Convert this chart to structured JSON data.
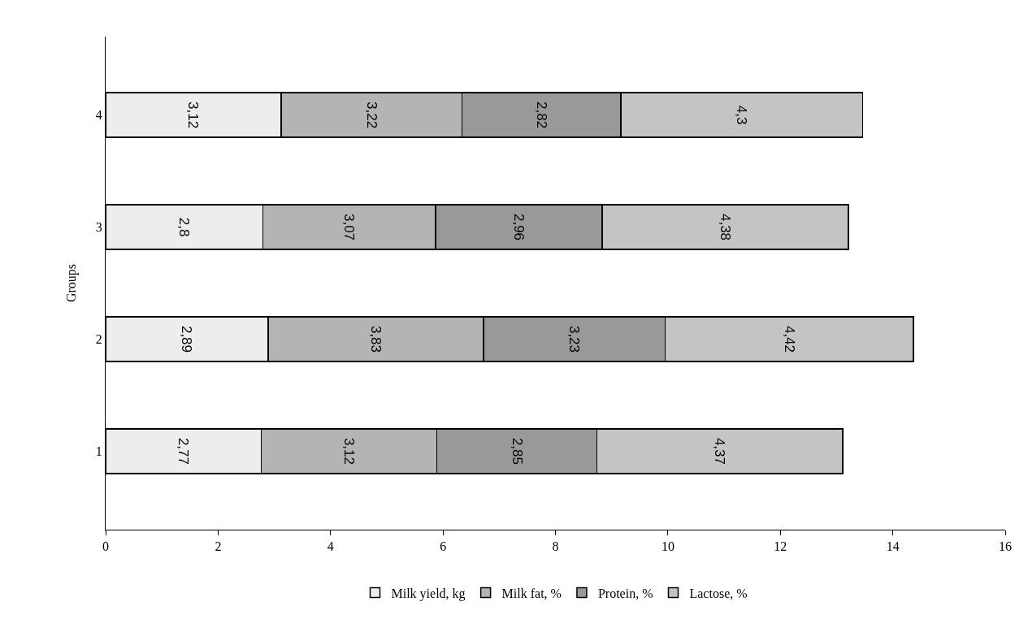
{
  "chart_data": {
    "type": "bar",
    "orientation": "horizontal",
    "stacked": true,
    "ylabel": "Groups",
    "categories": [
      "4",
      "3",
      "2",
      "1"
    ],
    "series": [
      {
        "name": "Milk yield, kg",
        "color": "#ededed",
        "values": [
          3.12,
          2.8,
          2.89,
          2.77
        ],
        "value_labels": [
          "3,12",
          "2,8",
          "2,89",
          "2,77"
        ]
      },
      {
        "name": "Milk fat, %",
        "color": "#b4b4b4",
        "values": [
          3.22,
          3.07,
          3.83,
          3.12
        ],
        "value_labels": [
          "3,22",
          "3,07",
          "3,83",
          "3,12"
        ]
      },
      {
        "name": "Protein, %",
        "color": "#999999",
        "values": [
          2.82,
          2.96,
          3.23,
          2.85
        ],
        "value_labels": [
          "2,82",
          "2,96",
          "3,23",
          "2,85"
        ]
      },
      {
        "name": "Lactose, %",
        "color": "#c4c4c4",
        "values": [
          4.3,
          4.38,
          4.42,
          4.37
        ],
        "value_labels": [
          "4,3",
          "4,38",
          "4,42",
          "4,37"
        ]
      }
    ],
    "xlim": [
      0,
      16
    ],
    "xticks": [
      0,
      2,
      4,
      6,
      8,
      10,
      12,
      14,
      16
    ],
    "grid": false,
    "legend": "bottom"
  }
}
